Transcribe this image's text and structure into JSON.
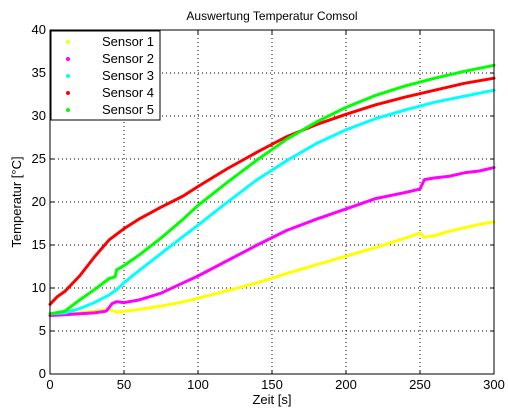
{
  "chart_data": {
    "type": "line",
    "title": "Auswertung Temperatur Comsol",
    "xlabel": "Zeit [s]",
    "ylabel": "Temperatur [°C]",
    "xlim": [
      0,
      300
    ],
    "ylim": [
      0,
      40
    ],
    "xticks": [
      0,
      50,
      100,
      150,
      200,
      250,
      300
    ],
    "yticks": [
      0,
      5,
      10,
      15,
      20,
      25,
      30,
      35,
      40
    ],
    "grid": true,
    "legend_position": "top-left",
    "series": [
      {
        "name": "Sensor 1",
        "color": "#ffff00",
        "points": [
          [
            0,
            6.8
          ],
          [
            10,
            7
          ],
          [
            20,
            7.1
          ],
          [
            30,
            7.3
          ],
          [
            40,
            7.5
          ],
          [
            45,
            7.2
          ],
          [
            50,
            7.3
          ],
          [
            60,
            7.5
          ],
          [
            75,
            7.9
          ],
          [
            90,
            8.4
          ],
          [
            100,
            8.8
          ],
          [
            120,
            9.7
          ],
          [
            140,
            10.6
          ],
          [
            160,
            11.7
          ],
          [
            180,
            12.7
          ],
          [
            200,
            13.7
          ],
          [
            220,
            14.7
          ],
          [
            240,
            15.8
          ],
          [
            250,
            16.4
          ],
          [
            253,
            15.9
          ],
          [
            260,
            16.1
          ],
          [
            270,
            16.6
          ],
          [
            280,
            17
          ],
          [
            290,
            17.4
          ],
          [
            300,
            17.7
          ]
        ]
      },
      {
        "name": "Sensor 2",
        "color": "#ff00ff",
        "points": [
          [
            0,
            6.8
          ],
          [
            10,
            6.9
          ],
          [
            20,
            7
          ],
          [
            30,
            7.1
          ],
          [
            38,
            7.3
          ],
          [
            42,
            8.2
          ],
          [
            45,
            8.4
          ],
          [
            50,
            8.3
          ],
          [
            60,
            8.6
          ],
          [
            75,
            9.4
          ],
          [
            90,
            10.6
          ],
          [
            100,
            11.4
          ],
          [
            120,
            13.2
          ],
          [
            140,
            15
          ],
          [
            160,
            16.7
          ],
          [
            180,
            18
          ],
          [
            200,
            19.2
          ],
          [
            220,
            20.4
          ],
          [
            240,
            21.1
          ],
          [
            250,
            21.5
          ],
          [
            253,
            22.6
          ],
          [
            260,
            22.8
          ],
          [
            270,
            23
          ],
          [
            280,
            23.4
          ],
          [
            290,
            23.6
          ],
          [
            300,
            24
          ]
        ]
      },
      {
        "name": "Sensor 3",
        "color": "#00ffff",
        "points": [
          [
            0,
            7
          ],
          [
            10,
            7.1
          ],
          [
            20,
            7.6
          ],
          [
            30,
            8.3
          ],
          [
            40,
            9.2
          ],
          [
            45,
            9.8
          ],
          [
            50,
            10.6
          ],
          [
            60,
            12
          ],
          [
            75,
            14
          ],
          [
            90,
            16
          ],
          [
            100,
            17.3
          ],
          [
            120,
            20
          ],
          [
            140,
            22.6
          ],
          [
            160,
            24.8
          ],
          [
            180,
            26.8
          ],
          [
            200,
            28.4
          ],
          [
            220,
            29.7
          ],
          [
            240,
            30.7
          ],
          [
            260,
            31.6
          ],
          [
            280,
            32.3
          ],
          [
            300,
            33
          ]
        ]
      },
      {
        "name": "Sensor 4",
        "color": "#ff0000",
        "points": [
          [
            0,
            8.1
          ],
          [
            5,
            9
          ],
          [
            10,
            9.6
          ],
          [
            20,
            11.4
          ],
          [
            30,
            13.6
          ],
          [
            40,
            15.6
          ],
          [
            50,
            16.9
          ],
          [
            60,
            18
          ],
          [
            75,
            19.4
          ],
          [
            90,
            20.7
          ],
          [
            100,
            21.8
          ],
          [
            120,
            23.9
          ],
          [
            140,
            25.8
          ],
          [
            160,
            27.6
          ],
          [
            180,
            29
          ],
          [
            200,
            30.2
          ],
          [
            220,
            31.3
          ],
          [
            240,
            32.2
          ],
          [
            260,
            33
          ],
          [
            280,
            33.8
          ],
          [
            300,
            34.4
          ]
        ]
      },
      {
        "name": "Sensor 5",
        "color": "#00ff00",
        "points": [
          [
            0,
            7
          ],
          [
            10,
            7.3
          ],
          [
            20,
            8.6
          ],
          [
            30,
            9.8
          ],
          [
            40,
            11.1
          ],
          [
            44,
            11.3
          ],
          [
            45,
            12.1
          ],
          [
            50,
            12.6
          ],
          [
            60,
            13.8
          ],
          [
            75,
            15.8
          ],
          [
            90,
            18
          ],
          [
            100,
            19.6
          ],
          [
            120,
            22.3
          ],
          [
            140,
            24.9
          ],
          [
            160,
            27.3
          ],
          [
            180,
            29.3
          ],
          [
            200,
            31
          ],
          [
            220,
            32.4
          ],
          [
            240,
            33.5
          ],
          [
            260,
            34.4
          ],
          [
            280,
            35.2
          ],
          [
            300,
            35.9
          ]
        ]
      }
    ]
  }
}
